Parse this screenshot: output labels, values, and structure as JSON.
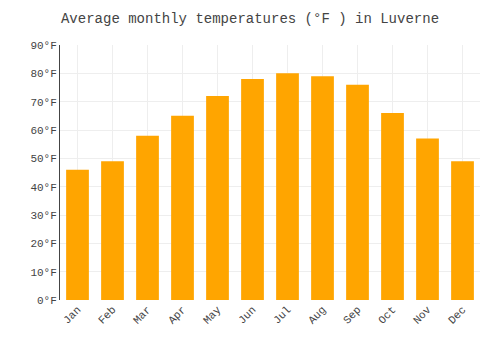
{
  "chart_data": {
    "type": "bar",
    "title": "Average monthly temperatures (°F ) in Luverne",
    "categories": [
      "Jan",
      "Feb",
      "Mar",
      "Apr",
      "May",
      "Jun",
      "Jul",
      "Aug",
      "Sep",
      "Oct",
      "Nov",
      "Dec"
    ],
    "values": [
      46,
      49,
      58,
      65,
      72,
      78,
      80,
      79,
      76,
      66,
      57,
      49
    ],
    "color": "#FFA500",
    "ylim": [
      0,
      90
    ],
    "yticks": [
      {
        "value": 0,
        "label": "0°F"
      },
      {
        "value": 10,
        "label": "10°F"
      },
      {
        "value": 20,
        "label": "20°F"
      },
      {
        "value": 30,
        "label": "30°F"
      },
      {
        "value": 40,
        "label": "40°F"
      },
      {
        "value": 50,
        "label": "50°F"
      },
      {
        "value": 60,
        "label": "60°F"
      },
      {
        "value": 70,
        "label": "70°F"
      },
      {
        "value": 80,
        "label": "80°F"
      },
      {
        "value": 90,
        "label": "90°F"
      }
    ],
    "grid": true
  }
}
